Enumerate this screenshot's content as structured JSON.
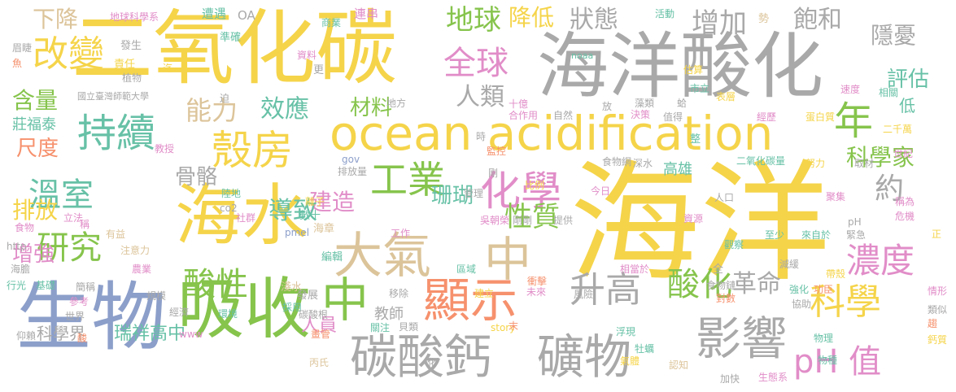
{
  "colors": {
    "yellow": "#f5d44a",
    "gray": "#a9a9a9",
    "green": "#86c44c",
    "blue": "#8c9fca",
    "pink": "#e18dc8",
    "orange": "#f6916d",
    "tan": "#dcc49a",
    "teal": "#67c1a6"
  },
  "words": [
    {
      "text": "海洋",
      "color": "yellow"
    },
    {
      "text": "二氧化碳",
      "color": "yellow"
    },
    {
      "text": "海洋酸化",
      "color": "gray"
    },
    {
      "text": "ocean acidification",
      "color": "yellow"
    },
    {
      "text": "生物",
      "color": "blue"
    },
    {
      "text": "海水",
      "color": "yellow"
    },
    {
      "text": "吸收",
      "color": "green"
    },
    {
      "text": "大氣",
      "color": "tan"
    },
    {
      "text": "中",
      "color": "tan"
    },
    {
      "text": "中",
      "color": "green"
    },
    {
      "text": "顯示",
      "color": "orange"
    },
    {
      "text": "碳酸鈣",
      "color": "gray"
    },
    {
      "text": "礦物",
      "color": "gray"
    },
    {
      "text": "影響",
      "color": "gray"
    },
    {
      "text": "持續",
      "color": "teal"
    },
    {
      "text": "殼房",
      "color": "yellow"
    },
    {
      "text": "化學",
      "color": "pink"
    },
    {
      "text": "工業",
      "color": "green"
    },
    {
      "text": "年",
      "color": "green"
    },
    {
      "text": "改變",
      "color": "yellow"
    },
    {
      "text": "全球",
      "color": "pink"
    },
    {
      "text": "升高",
      "color": "gray"
    },
    {
      "text": "酸化",
      "color": "green"
    },
    {
      "text": "科學",
      "color": "yellow"
    },
    {
      "text": "pH 值",
      "color": "pink"
    },
    {
      "text": "濃度",
      "color": "pink"
    },
    {
      "text": "研究",
      "color": "green"
    },
    {
      "text": "溫室",
      "color": "teal"
    },
    {
      "text": "酸性",
      "color": "green"
    },
    {
      "text": "性質",
      "color": "green"
    },
    {
      "text": "地球",
      "color": "green"
    },
    {
      "text": "約",
      "color": "gray"
    },
    {
      "text": "革命",
      "color": "gray"
    },
    {
      "text": "能力",
      "color": "tan"
    },
    {
      "text": "效應",
      "color": "teal"
    },
    {
      "text": "人類",
      "color": "gray"
    },
    {
      "text": "增加",
      "color": "gray"
    },
    {
      "text": "飽和",
      "color": "gray"
    },
    {
      "text": "狀態",
      "color": "gray"
    },
    {
      "text": "降低",
      "color": "yellow"
    },
    {
      "text": "隱憂",
      "color": "gray"
    },
    {
      "text": "評估",
      "color": "teal"
    },
    {
      "text": "科學家",
      "color": "green"
    },
    {
      "text": "建造",
      "color": "pink"
    },
    {
      "text": "導致",
      "color": "teal"
    },
    {
      "text": "珊瑚",
      "color": "teal"
    },
    {
      "text": "材料",
      "color": "green"
    },
    {
      "text": "骨骼",
      "color": "gray"
    },
    {
      "text": "下降",
      "color": "tan"
    },
    {
      "text": "含量",
      "color": "green"
    },
    {
      "text": "尺度",
      "color": "orange"
    },
    {
      "text": "排放",
      "color": "yellow"
    },
    {
      "text": "增強",
      "color": "pink"
    },
    {
      "text": "科學界",
      "color": "gray"
    },
    {
      "text": "瑞祥高中",
      "color": "teal"
    },
    {
      "text": "人員",
      "color": "pink"
    },
    {
      "text": "教師",
      "color": "gray"
    },
    {
      "text": "高雄",
      "color": "teal"
    },
    {
      "text": "低",
      "color": "teal"
    },
    {
      "text": "莊福泰",
      "color": "teal"
    },
    {
      "text": "地球科學系",
      "color": "pink"
    },
    {
      "text": "國立臺灣師範大學",
      "color": "gray"
    },
    {
      "text": "遭遇",
      "color": "teal"
    },
    {
      "text": "OA",
      "color": "gray"
    },
    {
      "text": "連串",
      "color": "pink"
    },
    {
      "text": "商業",
      "color": "teal"
    },
    {
      "text": "活動",
      "color": "teal"
    },
    {
      "text": "勢",
      "color": "tan"
    },
    {
      "text": "準確",
      "color": "teal"
    },
    {
      "text": "發生",
      "color": "gray"
    },
    {
      "text": "責任",
      "color": "yellow"
    },
    {
      "text": "植物",
      "color": "gray"
    },
    {
      "text": "迄",
      "color": "yellow"
    },
    {
      "text": "資料",
      "color": "pink"
    },
    {
      "text": "更",
      "color": "gray"
    },
    {
      "text": "noaa",
      "color": "teal"
    },
    {
      "text": "估算",
      "color": "yellow"
    },
    {
      "text": "市立",
      "color": "teal"
    },
    {
      "text": "十億",
      "color": "pink"
    },
    {
      "text": "合作用",
      "color": "pink"
    },
    {
      "text": "自然",
      "color": "gray"
    },
    {
      "text": "放",
      "color": "gray"
    },
    {
      "text": "藻類",
      "color": "gray"
    },
    {
      "text": "蛤",
      "color": "gray"
    },
    {
      "text": "表層",
      "color": "yellow"
    },
    {
      "text": "速度",
      "color": "pink"
    },
    {
      "text": "相關",
      "color": "teal"
    },
    {
      "text": "決策",
      "color": "pink"
    },
    {
      "text": "值得",
      "color": "gray"
    },
    {
      "text": "經歷",
      "color": "pink"
    },
    {
      "text": "蛋白質",
      "color": "yellow"
    },
    {
      "text": "二千萬",
      "color": "yellow"
    },
    {
      "text": "地方",
      "color": "gray"
    },
    {
      "text": "迫",
      "color": "gray"
    },
    {
      "text": "教授",
      "color": "pink"
    },
    {
      "text": "時",
      "color": "gray"
    },
    {
      "text": "監控",
      "color": "orange"
    },
    {
      "text": "gov",
      "color": "blue"
    },
    {
      "text": "排放量",
      "color": "gray"
    },
    {
      "text": "剛",
      "color": "gray"
    },
    {
      "text": "食物網",
      "color": "gray"
    },
    {
      "text": "整",
      "color": "teal"
    },
    {
      "text": "深水",
      "color": "gray"
    },
    {
      "text": "二氧化碳量",
      "color": "teal"
    },
    {
      "text": "努力",
      "color": "yellow"
    },
    {
      "text": "取材",
      "color": "gray"
    },
    {
      "text": "世紀",
      "color": "pink"
    },
    {
      "text": "陸地",
      "color": "teal"
    },
    {
      "text": "co2",
      "color": "gray"
    },
    {
      "text": "pmel",
      "color": "blue"
    },
    {
      "text": "離子",
      "color": "yellow"
    },
    {
      "text": "管理",
      "color": "gray"
    },
    {
      "text": "比例",
      "color": "yellow"
    },
    {
      "text": "今日",
      "color": "pink"
    },
    {
      "text": "人口",
      "color": "gray"
    },
    {
      "text": "聚集",
      "color": "pink"
    },
    {
      "text": "稱為",
      "color": "pink"
    },
    {
      "text": "社群",
      "color": "pink"
    },
    {
      "text": "數十",
      "color": "teal"
    },
    {
      "text": "海章",
      "color": "tan"
    },
    {
      "text": "吳朝榮",
      "color": "pink"
    },
    {
      "text": "剛剛",
      "color": "gray"
    },
    {
      "text": "提供",
      "color": "gray"
    },
    {
      "text": "資源",
      "color": "pink"
    },
    {
      "text": "pH",
      "color": "gray"
    },
    {
      "text": "危機",
      "color": "pink"
    },
    {
      "text": "緊急",
      "color": "gray"
    },
    {
      "text": "工作",
      "color": "pink"
    },
    {
      "text": "觀察",
      "color": "teal"
    },
    {
      "text": "至少",
      "color": "teal"
    },
    {
      "text": "來自於",
      "color": "teal"
    },
    {
      "text": "正",
      "color": "yellow"
    },
    {
      "text": "立法",
      "color": "pink"
    },
    {
      "text": "稱",
      "color": "pink"
    },
    {
      "text": "食物",
      "color": "pink"
    },
    {
      "text": "有益",
      "color": "tan"
    },
    {
      "text": "注意力",
      "color": "tan"
    },
    {
      "text": "http",
      "color": "gray"
    },
    {
      "text": "海膽",
      "color": "gray"
    },
    {
      "text": "編輯",
      "color": "teal"
    },
    {
      "text": "區域",
      "color": "teal"
    },
    {
      "text": "減緩",
      "color": "gray"
    },
    {
      "text": "帶殼",
      "color": "yellow"
    },
    {
      "text": "功臣",
      "color": "orange"
    },
    {
      "text": "農業",
      "color": "pink"
    },
    {
      "text": "建立",
      "color": "yellow"
    },
    {
      "text": "未來",
      "color": "pink"
    },
    {
      "text": "風險",
      "color": "gray"
    },
    {
      "text": "相當於",
      "color": "pink"
    },
    {
      "text": "全",
      "color": "gray"
    },
    {
      "text": "行光",
      "color": "teal"
    },
    {
      "text": "基礎",
      "color": "teal"
    },
    {
      "text": "簡稱",
      "color": "gray"
    },
    {
      "text": "發展",
      "color": "gray"
    },
    {
      "text": "移除",
      "color": "gray"
    },
    {
      "text": "衝擊",
      "color": "orange"
    },
    {
      "text": "食物鏈",
      "color": "gray"
    },
    {
      "text": "強化",
      "color": "teal"
    },
    {
      "text": "情形",
      "color": "pink"
    },
    {
      "text": "參考",
      "color": "pink"
    },
    {
      "text": "規模",
      "color": "gray"
    },
    {
      "text": "淺水",
      "color": "tan"
    },
    {
      "text": "對數",
      "color": "orange"
    },
    {
      "text": "類似",
      "color": "gray"
    },
    {
      "text": "世界",
      "color": "gray"
    },
    {
      "text": "經濟",
      "color": "gray"
    },
    {
      "text": "採用",
      "color": "teal"
    },
    {
      "text": "碳酸根",
      "color": "gray"
    },
    {
      "text": "協助",
      "color": "gray"
    },
    {
      "text": "酸",
      "color": "orange"
    },
    {
      "text": "環境",
      "color": "teal"
    },
    {
      "text": "畫管",
      "color": "orange"
    },
    {
      "text": "關注",
      "color": "teal"
    },
    {
      "text": "貝類",
      "color": "gray"
    },
    {
      "text": "story",
      "color": "yellow"
    },
    {
      "text": "末",
      "color": "orange"
    },
    {
      "text": "浮現",
      "color": "teal"
    },
    {
      "text": "物理",
      "color": "teal"
    },
    {
      "text": "仰賴",
      "color": "gray"
    },
    {
      "text": "www",
      "color": "pink"
    },
    {
      "text": "牡蠣",
      "color": "teal"
    },
    {
      "text": "氣體",
      "color": "yellow"
    },
    {
      "text": "趨",
      "color": "orange"
    },
    {
      "text": "物種",
      "color": "teal"
    },
    {
      "text": "鈣質",
      "color": "yellow"
    },
    {
      "text": "丙氏",
      "color": "tan"
    },
    {
      "text": "化",
      "color": "gray"
    },
    {
      "text": "認知",
      "color": "tan"
    },
    {
      "text": "加快",
      "color": "gray"
    },
    {
      "text": "生態系",
      "color": "pink"
    },
    {
      "text": "眉睫",
      "color": "gray"
    },
    {
      "text": "魚",
      "color": "orange"
    }
  ]
}
